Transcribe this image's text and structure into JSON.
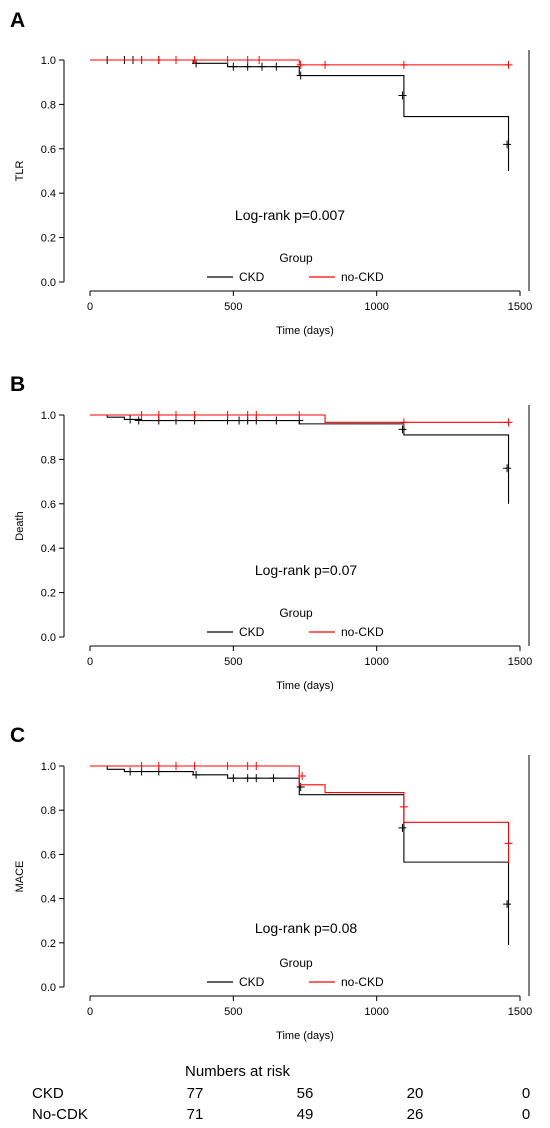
{
  "chart_data": [
    {
      "type": "line",
      "panel_label": "A",
      "xlabel": "Time (days)",
      "ylabel": "TLR",
      "xlim": [
        0,
        1500
      ],
      "ylim": [
        0,
        1
      ],
      "xticks": [
        "0",
        "500",
        "1000",
        "1500"
      ],
      "yticks": [
        "0.0",
        "0.2",
        "0.4",
        "0.6",
        "0.8",
        "1.0"
      ],
      "annotation": "Log-rank p=0.007",
      "legend": {
        "title": "Group",
        "placement": "bottom-center"
      },
      "series": [
        {
          "name": "CKD",
          "color": "#000000",
          "steps": [
            [
              0,
              1.0
            ],
            [
              360,
              0.985
            ],
            [
              480,
              0.97
            ],
            [
              730,
              0.93
            ],
            [
              1095,
              0.745
            ],
            [
              1460,
              0.5
            ]
          ],
          "censor": [
            [
              60,
              1.0
            ],
            [
              120,
              1.0
            ],
            [
              150,
              1.0
            ],
            [
              180,
              1.0
            ],
            [
              240,
              1.0
            ],
            [
              300,
              1.0
            ],
            [
              370,
              0.985
            ],
            [
              500,
              0.97
            ],
            [
              550,
              0.97
            ],
            [
              600,
              0.97
            ],
            [
              650,
              0.97
            ],
            [
              735,
              0.93
            ],
            [
              1090,
              0.84
            ],
            [
              1455,
              0.62
            ]
          ]
        },
        {
          "name": "no-CKD",
          "color": "#ff0000",
          "steps": [
            [
              0,
              1.0
            ],
            [
              730,
              0.978
            ],
            [
              1460,
              0.978
            ]
          ],
          "censor": [
            [
              180,
              1.0
            ],
            [
              240,
              1.0
            ],
            [
              300,
              1.0
            ],
            [
              365,
              1.0
            ],
            [
              480,
              1.0
            ],
            [
              550,
              1.0
            ],
            [
              590,
              1.0
            ],
            [
              735,
              0.978
            ],
            [
              820,
              0.978
            ],
            [
              1095,
              0.978
            ],
            [
              1460,
              0.978
            ]
          ]
        }
      ]
    },
    {
      "type": "line",
      "panel_label": "B",
      "xlabel": "Time (days)",
      "ylabel": "Death",
      "xlim": [
        0,
        1500
      ],
      "ylim": [
        0,
        1
      ],
      "xticks": [
        "0",
        "500",
        "1000",
        "1500"
      ],
      "yticks": [
        "0.0",
        "0.2",
        "0.4",
        "0.6",
        "0.8",
        "1.0"
      ],
      "annotation": "Log-rank p=0.07",
      "legend": {
        "title": "Group",
        "placement": "bottom-center"
      },
      "series": [
        {
          "name": "CKD",
          "color": "#000000",
          "steps": [
            [
              0,
              1.0
            ],
            [
              60,
              0.99
            ],
            [
              120,
              0.98
            ],
            [
              180,
              0.975
            ],
            [
              730,
              0.96
            ],
            [
              1095,
              0.91
            ],
            [
              1460,
              0.6
            ]
          ],
          "censor": [
            [
              140,
              0.98
            ],
            [
              170,
              0.975
            ],
            [
              240,
              0.975
            ],
            [
              300,
              0.975
            ],
            [
              365,
              0.975
            ],
            [
              480,
              0.975
            ],
            [
              520,
              0.975
            ],
            [
              550,
              0.975
            ],
            [
              580,
              0.975
            ],
            [
              650,
              0.975
            ],
            [
              730,
              0.975
            ],
            [
              1090,
              0.935
            ],
            [
              1455,
              0.76
            ]
          ]
        },
        {
          "name": "no-CKD",
          "color": "#ff0000",
          "steps": [
            [
              0,
              1.0
            ],
            [
              820,
              0.967
            ],
            [
              1460,
              0.967
            ]
          ],
          "censor": [
            [
              180,
              1.0
            ],
            [
              240,
              1.0
            ],
            [
              300,
              1.0
            ],
            [
              365,
              1.0
            ],
            [
              480,
              1.0
            ],
            [
              550,
              1.0
            ],
            [
              580,
              1.0
            ],
            [
              730,
              1.0
            ],
            [
              1095,
              0.967
            ],
            [
              1460,
              0.967
            ]
          ]
        }
      ]
    },
    {
      "type": "line",
      "panel_label": "C",
      "xlabel": "Time (days)",
      "ylabel": "MACE",
      "xlim": [
        0,
        1500
      ],
      "ylim": [
        0,
        1
      ],
      "xticks": [
        "0",
        "500",
        "1000",
        "1500"
      ],
      "yticks": [
        "0.0",
        "0.2",
        "0.4",
        "0.6",
        "0.8",
        "1.0"
      ],
      "annotation": "Log-rank p=0.08",
      "legend": {
        "title": "Group",
        "placement": "bottom-center"
      },
      "series": [
        {
          "name": "CKD",
          "color": "#000000",
          "steps": [
            [
              0,
              1.0
            ],
            [
              60,
              0.985
            ],
            [
              120,
              0.975
            ],
            [
              360,
              0.96
            ],
            [
              480,
              0.945
            ],
            [
              730,
              0.87
            ],
            [
              1095,
              0.565
            ],
            [
              1460,
              0.19
            ]
          ],
          "censor": [
            [
              140,
              0.975
            ],
            [
              180,
              0.975
            ],
            [
              240,
              0.975
            ],
            [
              370,
              0.96
            ],
            [
              500,
              0.945
            ],
            [
              550,
              0.945
            ],
            [
              580,
              0.945
            ],
            [
              640,
              0.945
            ],
            [
              735,
              0.905
            ],
            [
              1090,
              0.72
            ],
            [
              1455,
              0.375
            ]
          ]
        },
        {
          "name": "no-CKD",
          "color": "#ff0000",
          "steps": [
            [
              0,
              1.0
            ],
            [
              730,
              0.915
            ],
            [
              820,
              0.88
            ],
            [
              1095,
              0.745
            ],
            [
              1460,
              0.56
            ]
          ],
          "censor": [
            [
              180,
              1.0
            ],
            [
              240,
              1.0
            ],
            [
              300,
              1.0
            ],
            [
              365,
              1.0
            ],
            [
              480,
              1.0
            ],
            [
              550,
              1.0
            ],
            [
              580,
              1.0
            ],
            [
              740,
              0.955
            ],
            [
              1095,
              0.815
            ],
            [
              1460,
              0.65
            ]
          ]
        }
      ]
    }
  ],
  "risk_table": {
    "title": "Numbers at risk",
    "rows": [
      {
        "label": "CKD",
        "values": [
          "77",
          "56",
          "20",
          "0"
        ]
      },
      {
        "label": "No-CDK",
        "values": [
          "71",
          "49",
          "26",
          "0"
        ]
      }
    ]
  }
}
